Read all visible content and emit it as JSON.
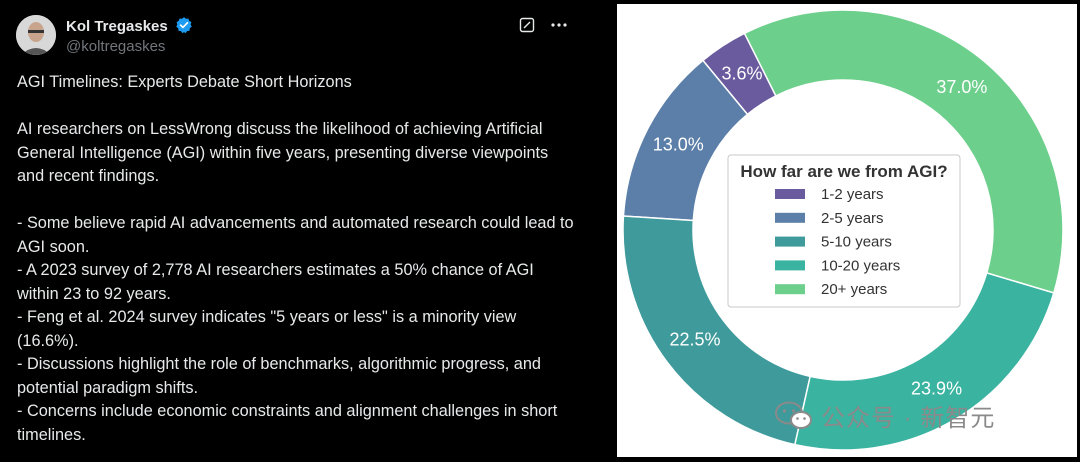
{
  "tweet": {
    "author_name": "Kol Tregaskes",
    "handle": "@koltregaskes",
    "title": "AGI Timelines: Experts Debate Short Horizons",
    "intro": "AI researchers on LessWrong discuss the likelihood of achieving Artificial General Intelligence (AGI) within five years, presenting diverse viewpoints and recent findings.",
    "bullets": [
      "- Some believe rapid AI advancements and automated research could lead to AGI soon.",
      "- A 2023 survey of 2,778 AI researchers estimates a 50% chance of AGI within 23 to 92 years.",
      "- Feng et al. 2024 survey indicates \"5 years or less\" is a minority view (16.6%).",
      "- Discussions highlight the role of benchmarks, algorithmic progress, and potential paradigm shifts.",
      "- Concerns include economic constraints and alignment challenges in short timelines."
    ],
    "icons": [
      "edit-icon",
      "more-icon"
    ],
    "verified_color": "#1d9bf0"
  },
  "chart_data": {
    "type": "pie",
    "style": "donut",
    "title": "How far are we from AGI?",
    "categories": [
      "1-2 years",
      "2-5 years",
      "5-10 years",
      "10-20 years",
      "20+ years"
    ],
    "values": [
      3.6,
      13.0,
      22.5,
      23.9,
      37.0
    ],
    "labels": [
      "3.6%",
      "13.0%",
      "22.5%",
      "23.9%",
      "37.0%"
    ],
    "colors": [
      "#6a5a9e",
      "#5b7fa8",
      "#3f9a9b",
      "#3ab3a0",
      "#6ccf8b"
    ],
    "legend_position": "center"
  },
  "watermark": {
    "text": "公众号 · 新智元"
  }
}
